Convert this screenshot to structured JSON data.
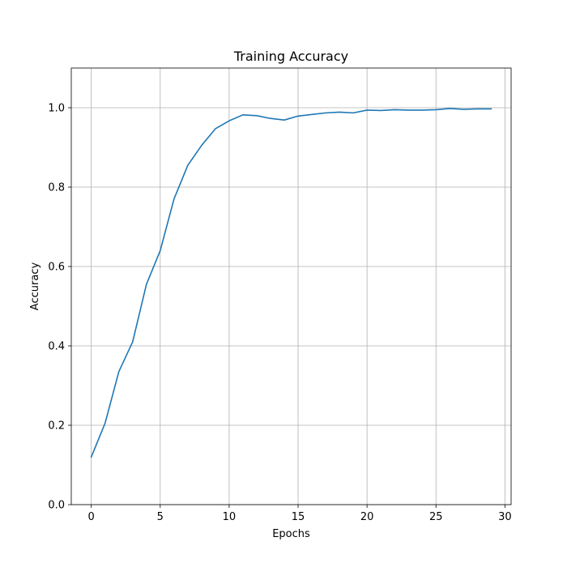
{
  "chart_data": {
    "type": "line",
    "title": "Training Accuracy",
    "xlabel": "Epochs",
    "ylabel": "Accuracy",
    "xlim": [
      -1.45,
      30.45
    ],
    "ylim": [
      0,
      1.1
    ],
    "xticks": [
      0,
      5,
      10,
      15,
      20,
      25,
      30
    ],
    "xtick_labels": [
      "0",
      "5",
      "10",
      "15",
      "20",
      "25",
      "30"
    ],
    "yticks": [
      0.0,
      0.2,
      0.4,
      0.6,
      0.8,
      1.0
    ],
    "ytick_labels": [
      "0.0",
      "0.2",
      "0.4",
      "0.6",
      "0.8",
      "1.0"
    ],
    "grid": true,
    "series": [
      {
        "color": "#1f77b4",
        "x": [
          0,
          1,
          2,
          3,
          4,
          5,
          6,
          7,
          8,
          9,
          10,
          11,
          12,
          13,
          14,
          15,
          16,
          17,
          18,
          19,
          20,
          21,
          22,
          23,
          24,
          25,
          26,
          27,
          28,
          29
        ],
        "y": [
          0.12,
          0.205,
          0.335,
          0.41,
          0.555,
          0.64,
          0.77,
          0.855,
          0.905,
          0.947,
          0.967,
          0.982,
          0.98,
          0.973,
          0.969,
          0.979,
          0.983,
          0.987,
          0.989,
          0.987,
          0.994,
          0.993,
          0.995,
          0.994,
          0.994,
          0.995,
          0.998,
          0.996,
          0.997,
          0.997
        ]
      }
    ]
  }
}
